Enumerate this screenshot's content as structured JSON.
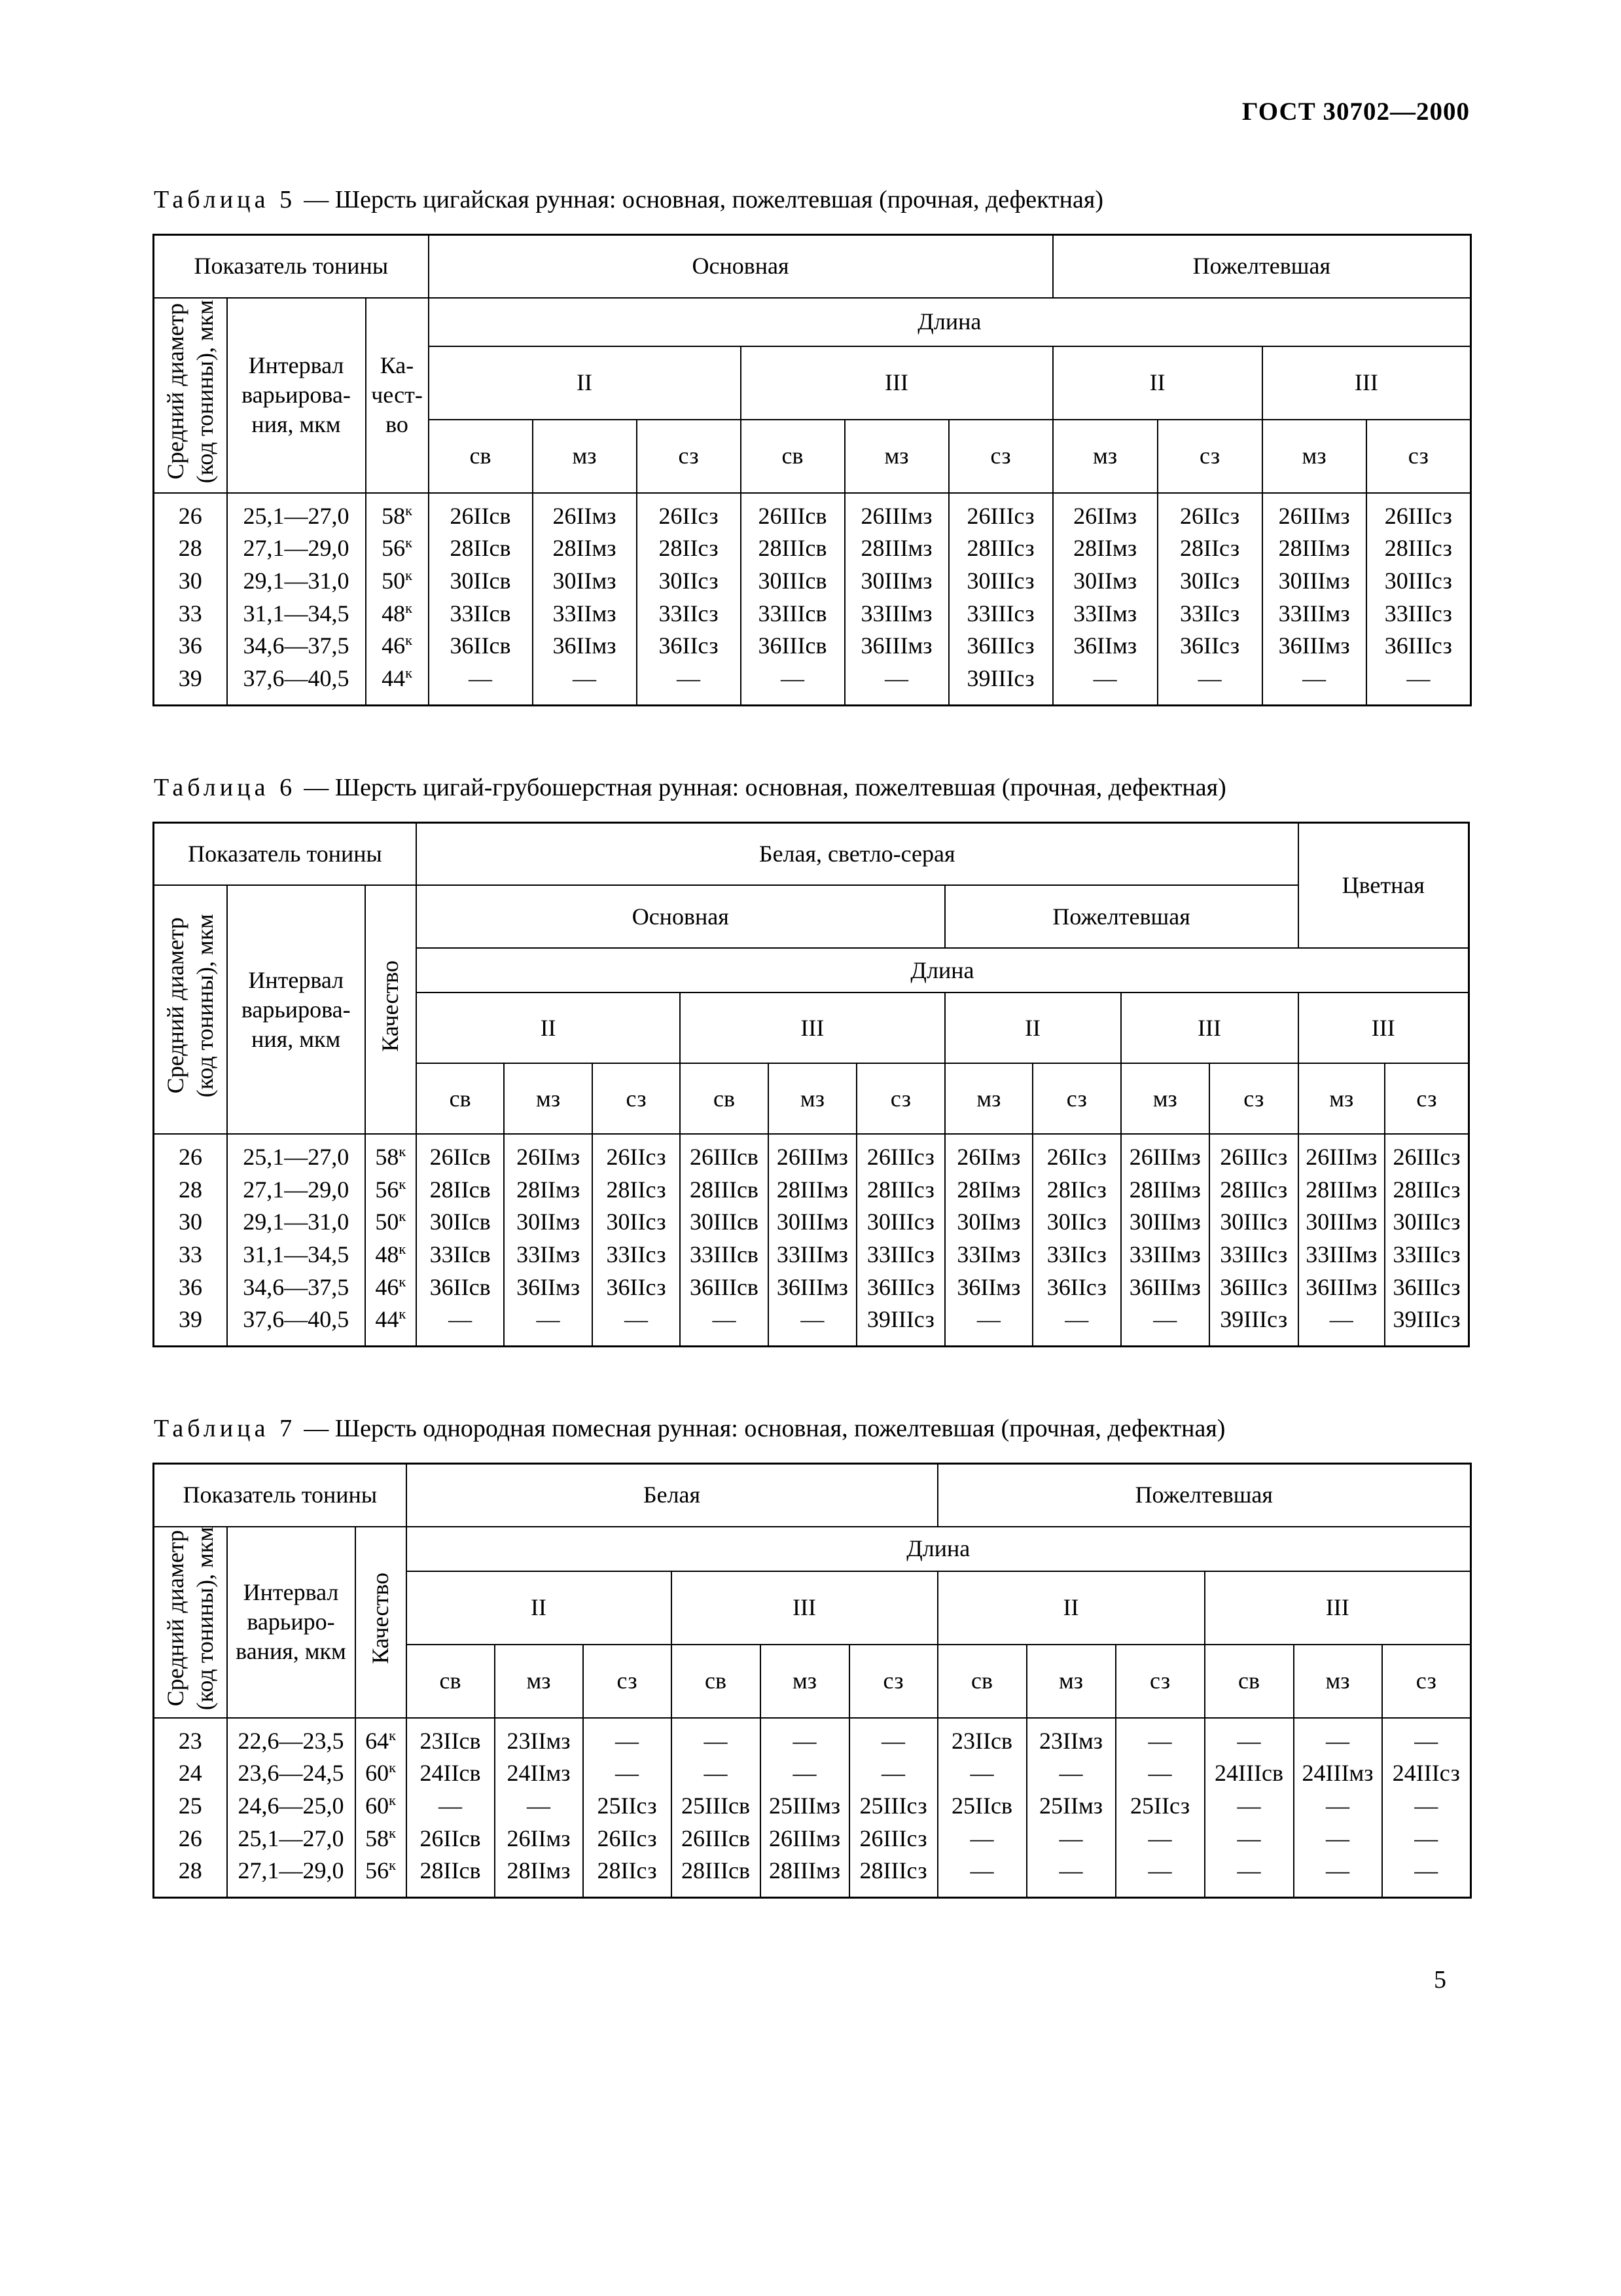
{
  "page": {
    "doc_header": "ГОСТ 30702—2000",
    "page_number": "5"
  },
  "table5": {
    "caption_label": "Таблица 5",
    "caption_text": "— Шерсть цигайская рунная: основная, пожелтевшая (прочная, дефектная)",
    "headers": {
      "pokazatel": "Показатель тонины",
      "osnovnaya": "Основная",
      "pozheltevshaya": "Пожелтевшая",
      "dlina": "Длина",
      "diameter": "Средний диаметр\n(код тонины), мкм",
      "interval": "Интервал\nварьирова-\nния, мкм",
      "kachestvo": "Ка-\nчест-\nво",
      "len2": "II",
      "len3": "III",
      "sv": "св",
      "mz": "мз",
      "sz": "сз"
    },
    "quality_sup": "к",
    "rows": [
      {
        "code": "26",
        "interval": "25,1—27,0",
        "quality": "58",
        "cells": [
          "26IIсв",
          "26IIмз",
          "26IIсз",
          "26IIIсв",
          "26IIIмз",
          "26IIIсз",
          "26IIмз",
          "26IIсз",
          "26IIIмз",
          "26IIIсз"
        ]
      },
      {
        "code": "28",
        "interval": "27,1—29,0",
        "quality": "56",
        "cells": [
          "28IIсв",
          "28IIмз",
          "28IIсз",
          "28IIIсв",
          "28IIIмз",
          "28IIIсз",
          "28IIмз",
          "28IIсз",
          "28IIIмз",
          "28IIIсз"
        ]
      },
      {
        "code": "30",
        "interval": "29,1—31,0",
        "quality": "50",
        "cells": [
          "30IIсв",
          "30IIмз",
          "30IIсз",
          "30IIIсв",
          "30IIIмз",
          "30IIIсз",
          "30IIмз",
          "30IIсз",
          "30IIIмз",
          "30IIIсз"
        ]
      },
      {
        "code": "33",
        "interval": "31,1—34,5",
        "quality": "48",
        "cells": [
          "33IIсв",
          "33IIмз",
          "33IIсз",
          "33IIIсв",
          "33IIIмз",
          "33IIIсз",
          "33IIмз",
          "33IIсз",
          "33IIIмз",
          "33IIIсз"
        ]
      },
      {
        "code": "36",
        "interval": "34,6—37,5",
        "quality": "46",
        "cells": [
          "36IIсв",
          "36IIмз",
          "36IIсз",
          "36IIIсв",
          "36IIIмз",
          "36IIIсз",
          "36IIмз",
          "36IIсз",
          "36IIIмз",
          "36IIIсз"
        ]
      },
      {
        "code": "39",
        "interval": "37,6—40,5",
        "quality": "44",
        "cells": [
          "—",
          "—",
          "—",
          "—",
          "—",
          "39IIIсз",
          "—",
          "—",
          "—",
          "—"
        ]
      }
    ]
  },
  "table6": {
    "caption_label": "Таблица 6",
    "caption_text": "— Шерсть цигай-грубошерстная рунная: основная, пожелтевшая (прочная, дефектная)",
    "headers": {
      "pokazatel": "Показатель тонины",
      "belaya": "Белая, светло-серая",
      "tsvetnaya": "Цветная",
      "osnovnaya": "Основная",
      "pozheltevshaya": "Пожелтевшая",
      "dlina": "Длина",
      "diameter": "Средний диаметр\n(код тонины), мкм",
      "interval": "Интервал\nварьирова-\nния, мкм",
      "kachestvo": "Качество",
      "len2": "II",
      "len3": "III",
      "sv": "св",
      "mz": "мз",
      "sz": "сз"
    },
    "quality_sup": "к",
    "rows": [
      {
        "code": "26",
        "interval": "25,1—27,0",
        "quality": "58",
        "cells": [
          "26IIсв",
          "26IIмз",
          "26IIсз",
          "26IIIсв",
          "26IIIмз",
          "26IIIсз",
          "26IIмз",
          "26IIсз",
          "26IIIмз",
          "26IIIсз",
          "26IIIмз",
          "26IIIсз"
        ]
      },
      {
        "code": "28",
        "interval": "27,1—29,0",
        "quality": "56",
        "cells": [
          "28IIсв",
          "28IIмз",
          "28IIсз",
          "28IIIсв",
          "28IIIмз",
          "28IIIсз",
          "28IIмз",
          "28IIсз",
          "28IIIмз",
          "28IIIсз",
          "28IIIмз",
          "28IIIсз"
        ]
      },
      {
        "code": "30",
        "interval": "29,1—31,0",
        "quality": "50",
        "cells": [
          "30IIсв",
          "30IIмз",
          "30IIсз",
          "30IIIсв",
          "30IIIмз",
          "30IIIсз",
          "30IIмз",
          "30IIсз",
          "30IIIмз",
          "30IIIсз",
          "30IIIмз",
          "30IIIсз"
        ]
      },
      {
        "code": "33",
        "interval": "31,1—34,5",
        "quality": "48",
        "cells": [
          "33IIсв",
          "33IIмз",
          "33IIсз",
          "33IIIсв",
          "33IIIмз",
          "33IIIсз",
          "33IIмз",
          "33IIсз",
          "33IIIмз",
          "33IIIсз",
          "33IIIмз",
          "33IIIсз"
        ]
      },
      {
        "code": "36",
        "interval": "34,6—37,5",
        "quality": "46",
        "cells": [
          "36IIсв",
          "36IIмз",
          "36IIсз",
          "36IIIсв",
          "36IIIмз",
          "36IIIсз",
          "36IIмз",
          "36IIсз",
          "36IIIмз",
          "36IIIсз",
          "36IIIмз",
          "36IIIсз"
        ]
      },
      {
        "code": "39",
        "interval": "37,6—40,5",
        "quality": "44",
        "cells": [
          "—",
          "—",
          "—",
          "—",
          "—",
          "39IIIсз",
          "—",
          "—",
          "—",
          "39IIIсз",
          "—",
          "39IIIсз"
        ]
      }
    ]
  },
  "table7": {
    "caption_label": "Таблица 7",
    "caption_text": "— Шерсть однородная помесная рунная: основная, пожелтевшая (прочная, дефектная)",
    "headers": {
      "pokazatel": "Показатель тонины",
      "belaya": "Белая",
      "pozheltevshaya": "Пожелтевшая",
      "dlina": "Длина",
      "diameter": "Средний диаметр\n(код тонины), мкм",
      "interval": "Интервал\nварьиро-\nвания, мкм",
      "kachestvo": "Качество",
      "len2": "II",
      "len3": "III",
      "sv": "св",
      "mz": "мз",
      "sz": "сз"
    },
    "quality_sup": "к",
    "rows": [
      {
        "code": "23",
        "interval": "22,6—23,5",
        "quality": "64",
        "cells": [
          "23IIсв",
          "23IIмз",
          "—",
          "—",
          "—",
          "—",
          "23IIсв",
          "23IIмз",
          "—",
          "—",
          "—",
          "—"
        ]
      },
      {
        "code": "24",
        "interval": "23,6—24,5",
        "quality": "60",
        "cells": [
          "24IIсв",
          "24IIмз",
          "—",
          "—",
          "—",
          "—",
          "—",
          "—",
          "—",
          "24IIIсв",
          "24IIIмз",
          "24IIIсз"
        ]
      },
      {
        "code": "25",
        "interval": "24,6—25,0",
        "quality": "60",
        "cells": [
          "—",
          "—",
          "25IIсз",
          "25IIIсв",
          "25IIIмз",
          "25IIIсз",
          "25IIсв",
          "25IIмз",
          "25IIсз",
          "—",
          "—",
          "—"
        ]
      },
      {
        "code": "26",
        "interval": "25,1—27,0",
        "quality": "58",
        "cells": [
          "26IIсв",
          "26IIмз",
          "26IIсз",
          "26IIIсв",
          "26IIIмз",
          "26IIIсз",
          "—",
          "—",
          "—",
          "—",
          "—",
          "—"
        ]
      },
      {
        "code": "28",
        "interval": "27,1—29,0",
        "quality": "56",
        "cells": [
          "28IIсв",
          "28IIмз",
          "28IIсз",
          "28IIIсв",
          "28IIIмз",
          "28IIIсз",
          "—",
          "—",
          "—",
          "—",
          "—",
          "—"
        ]
      }
    ]
  }
}
